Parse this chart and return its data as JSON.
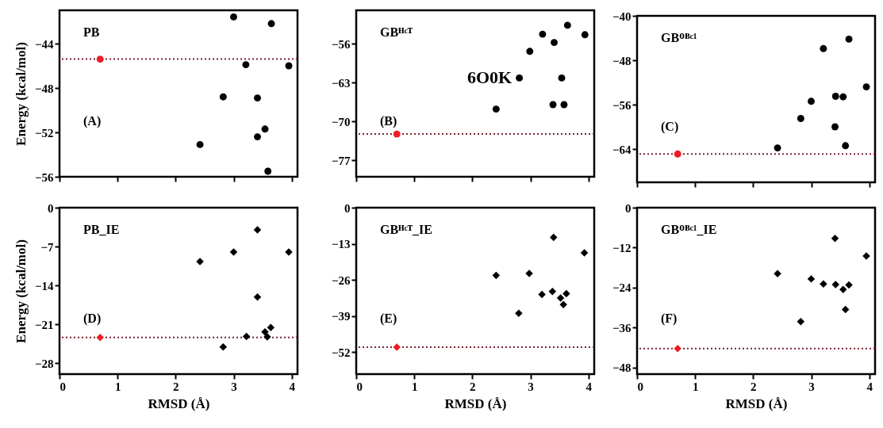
{
  "chart_data": [
    {
      "type": "scatter",
      "ylabel": "Energy (kcal/mol)",
      "annotations": [
        "PB",
        "(A)"
      ],
      "marker": "circle",
      "tick_labels": "y",
      "xlim": [
        0,
        4.1
      ],
      "xticks": [
        0,
        1,
        2,
        3,
        4
      ],
      "ylim": [
        -56,
        -41
      ],
      "yticks": [
        -56,
        -52,
        -48,
        -44
      ],
      "series": [
        {
          "color": "#000000",
          "x": [
            2.42,
            2.82,
            3.0,
            3.21,
            3.41,
            3.41,
            3.54,
            3.59,
            3.65,
            3.95
          ],
          "values": [
            -53.1,
            -48.8,
            -41.6,
            -45.9,
            -48.9,
            -52.4,
            -51.7,
            -55.5,
            -42.2,
            -46.0
          ]
        },
        {
          "color": "#ee1c25",
          "x": [
            0.7
          ],
          "values": [
            -45.4
          ]
        }
      ],
      "ref_lines": [
        {
          "axis": "y",
          "value": -45.4,
          "color": "#7b2330",
          "line_style": "dotted"
        }
      ]
    },
    {
      "type": "scatter",
      "annotations": [
        "GBᴴᶜᵀ",
        "(B)",
        "6O0K"
      ],
      "marker": "circle",
      "tick_labels": "y",
      "xlim": [
        0,
        4.1
      ],
      "xticks": [
        0,
        1,
        2,
        3,
        4
      ],
      "ylim": [
        -80,
        -50
      ],
      "yticks": [
        -77,
        -70,
        -63,
        -56
      ],
      "series": [
        {
          "color": "#000000",
          "x": [
            2.41,
            2.81,
            2.99,
            3.21,
            3.41,
            3.39,
            3.54,
            3.58,
            3.64,
            3.94
          ],
          "values": [
            -67.8,
            -62.2,
            -57.4,
            -54.3,
            -55.8,
            -67.0,
            -62.2,
            -67.0,
            -52.7,
            -54.4
          ]
        },
        {
          "color": "#ee1c25",
          "x": [
            0.7
          ],
          "values": [
            -72.3
          ]
        }
      ],
      "ref_lines": [
        {
          "axis": "y",
          "value": -72.3,
          "color": "#7b2330",
          "line_style": "dotted"
        }
      ]
    },
    {
      "type": "scatter",
      "annotations": [
        "GBᴼᴮᶜ¹",
        "(C)"
      ],
      "marker": "circle",
      "tick_labels": "y",
      "xlim": [
        0,
        4.1
      ],
      "xticks": [
        0,
        1,
        2,
        3,
        4
      ],
      "ylim": [
        -70,
        -40
      ],
      "yticks": [
        -64,
        -56,
        -48,
        -40
      ],
      "series": [
        {
          "color": "#000000",
          "x": [
            2.42,
            2.82,
            3.0,
            3.21,
            3.42,
            3.41,
            3.55,
            3.59,
            3.65,
            3.95
          ],
          "values": [
            -63.8,
            -58.5,
            -55.4,
            -45.9,
            -54.5,
            -60.0,
            -54.6,
            -63.4,
            -44.2,
            -52.8
          ]
        },
        {
          "color": "#ee1c25",
          "x": [
            0.7
          ],
          "values": [
            -64.9
          ]
        }
      ],
      "ref_lines": [
        {
          "axis": "y",
          "value": -64.9,
          "color": "#7b2330",
          "line_style": "dotted"
        }
      ]
    },
    {
      "type": "scatter",
      "xlabel": "RMSD (Å)",
      "ylabel": "Energy (kcal/mol)",
      "annotations": [
        "PB_IE",
        "(D)"
      ],
      "marker": "diamond",
      "xlim": [
        0,
        4.1
      ],
      "xticks": [
        0,
        1,
        2,
        3,
        4
      ],
      "ylim": [
        -30,
        0
      ],
      "yticks": [
        -28,
        -21,
        -14,
        -7,
        0
      ],
      "series": [
        {
          "color": "#000000",
          "x": [
            2.42,
            2.82,
            3.0,
            3.22,
            3.41,
            3.41,
            3.54,
            3.58,
            3.64,
            3.95
          ],
          "values": [
            -9.7,
            -25.1,
            -8.0,
            -23.2,
            -4.0,
            -16.1,
            -22.4,
            -23.3,
            -21.6,
            -8.0
          ]
        },
        {
          "color": "#ee1c25",
          "x": [
            0.7
          ],
          "values": [
            -23.4
          ]
        }
      ],
      "ref_lines": [
        {
          "axis": "y",
          "value": -23.4,
          "color": "#7b2330",
          "line_style": "dotted"
        }
      ]
    },
    {
      "type": "scatter",
      "xlabel": "RMSD (Å)",
      "annotations": [
        "GBᴴᶜᵀ_IE",
        "(E)"
      ],
      "marker": "diamond",
      "xlim": [
        0,
        4.1
      ],
      "xticks": [
        0,
        1,
        2,
        3,
        4
      ],
      "ylim": [
        -60,
        0
      ],
      "yticks": [
        -52,
        -39,
        -26,
        -13,
        0
      ],
      "series": [
        {
          "color": "#000000",
          "x": [
            2.41,
            2.8,
            2.98,
            3.2,
            3.4,
            3.38,
            3.52,
            3.57,
            3.62,
            3.93
          ],
          "values": [
            -24.4,
            -38.1,
            -23.7,
            -31.3,
            -10.7,
            -30.2,
            -32.6,
            -34.9,
            -31.0,
            -16.3
          ]
        },
        {
          "color": "#ee1c25",
          "x": [
            0.7
          ],
          "values": [
            -50.3
          ]
        }
      ],
      "ref_lines": [
        {
          "axis": "y",
          "value": -50.3,
          "color": "#7b2330",
          "line_style": "dotted"
        }
      ]
    },
    {
      "type": "scatter",
      "xlabel": "RMSD (Å)",
      "annotations": [
        "GBᴼᴮᶜ¹_IE",
        "(F)"
      ],
      "marker": "diamond",
      "xlim": [
        0,
        4.1
      ],
      "xticks": [
        0,
        1,
        2,
        3,
        4
      ],
      "ylim": [
        -50,
        0
      ],
      "yticks": [
        -48,
        -36,
        -24,
        -12,
        0
      ],
      "series": [
        {
          "color": "#000000",
          "x": [
            2.42,
            2.82,
            3.0,
            3.21,
            3.41,
            3.42,
            3.55,
            3.59,
            3.65,
            3.95
          ],
          "values": [
            -19.8,
            -34.2,
            -21.4,
            -22.9,
            -9.2,
            -23.1,
            -24.6,
            -30.6,
            -23.2,
            -14.5
          ]
        },
        {
          "color": "#ee1c25",
          "x": [
            0.7
          ],
          "values": [
            -42.3
          ]
        }
      ],
      "ref_lines": [
        {
          "axis": "y",
          "value": -42.3,
          "color": "#7b2330",
          "line_style": "dotted"
        }
      ]
    }
  ]
}
